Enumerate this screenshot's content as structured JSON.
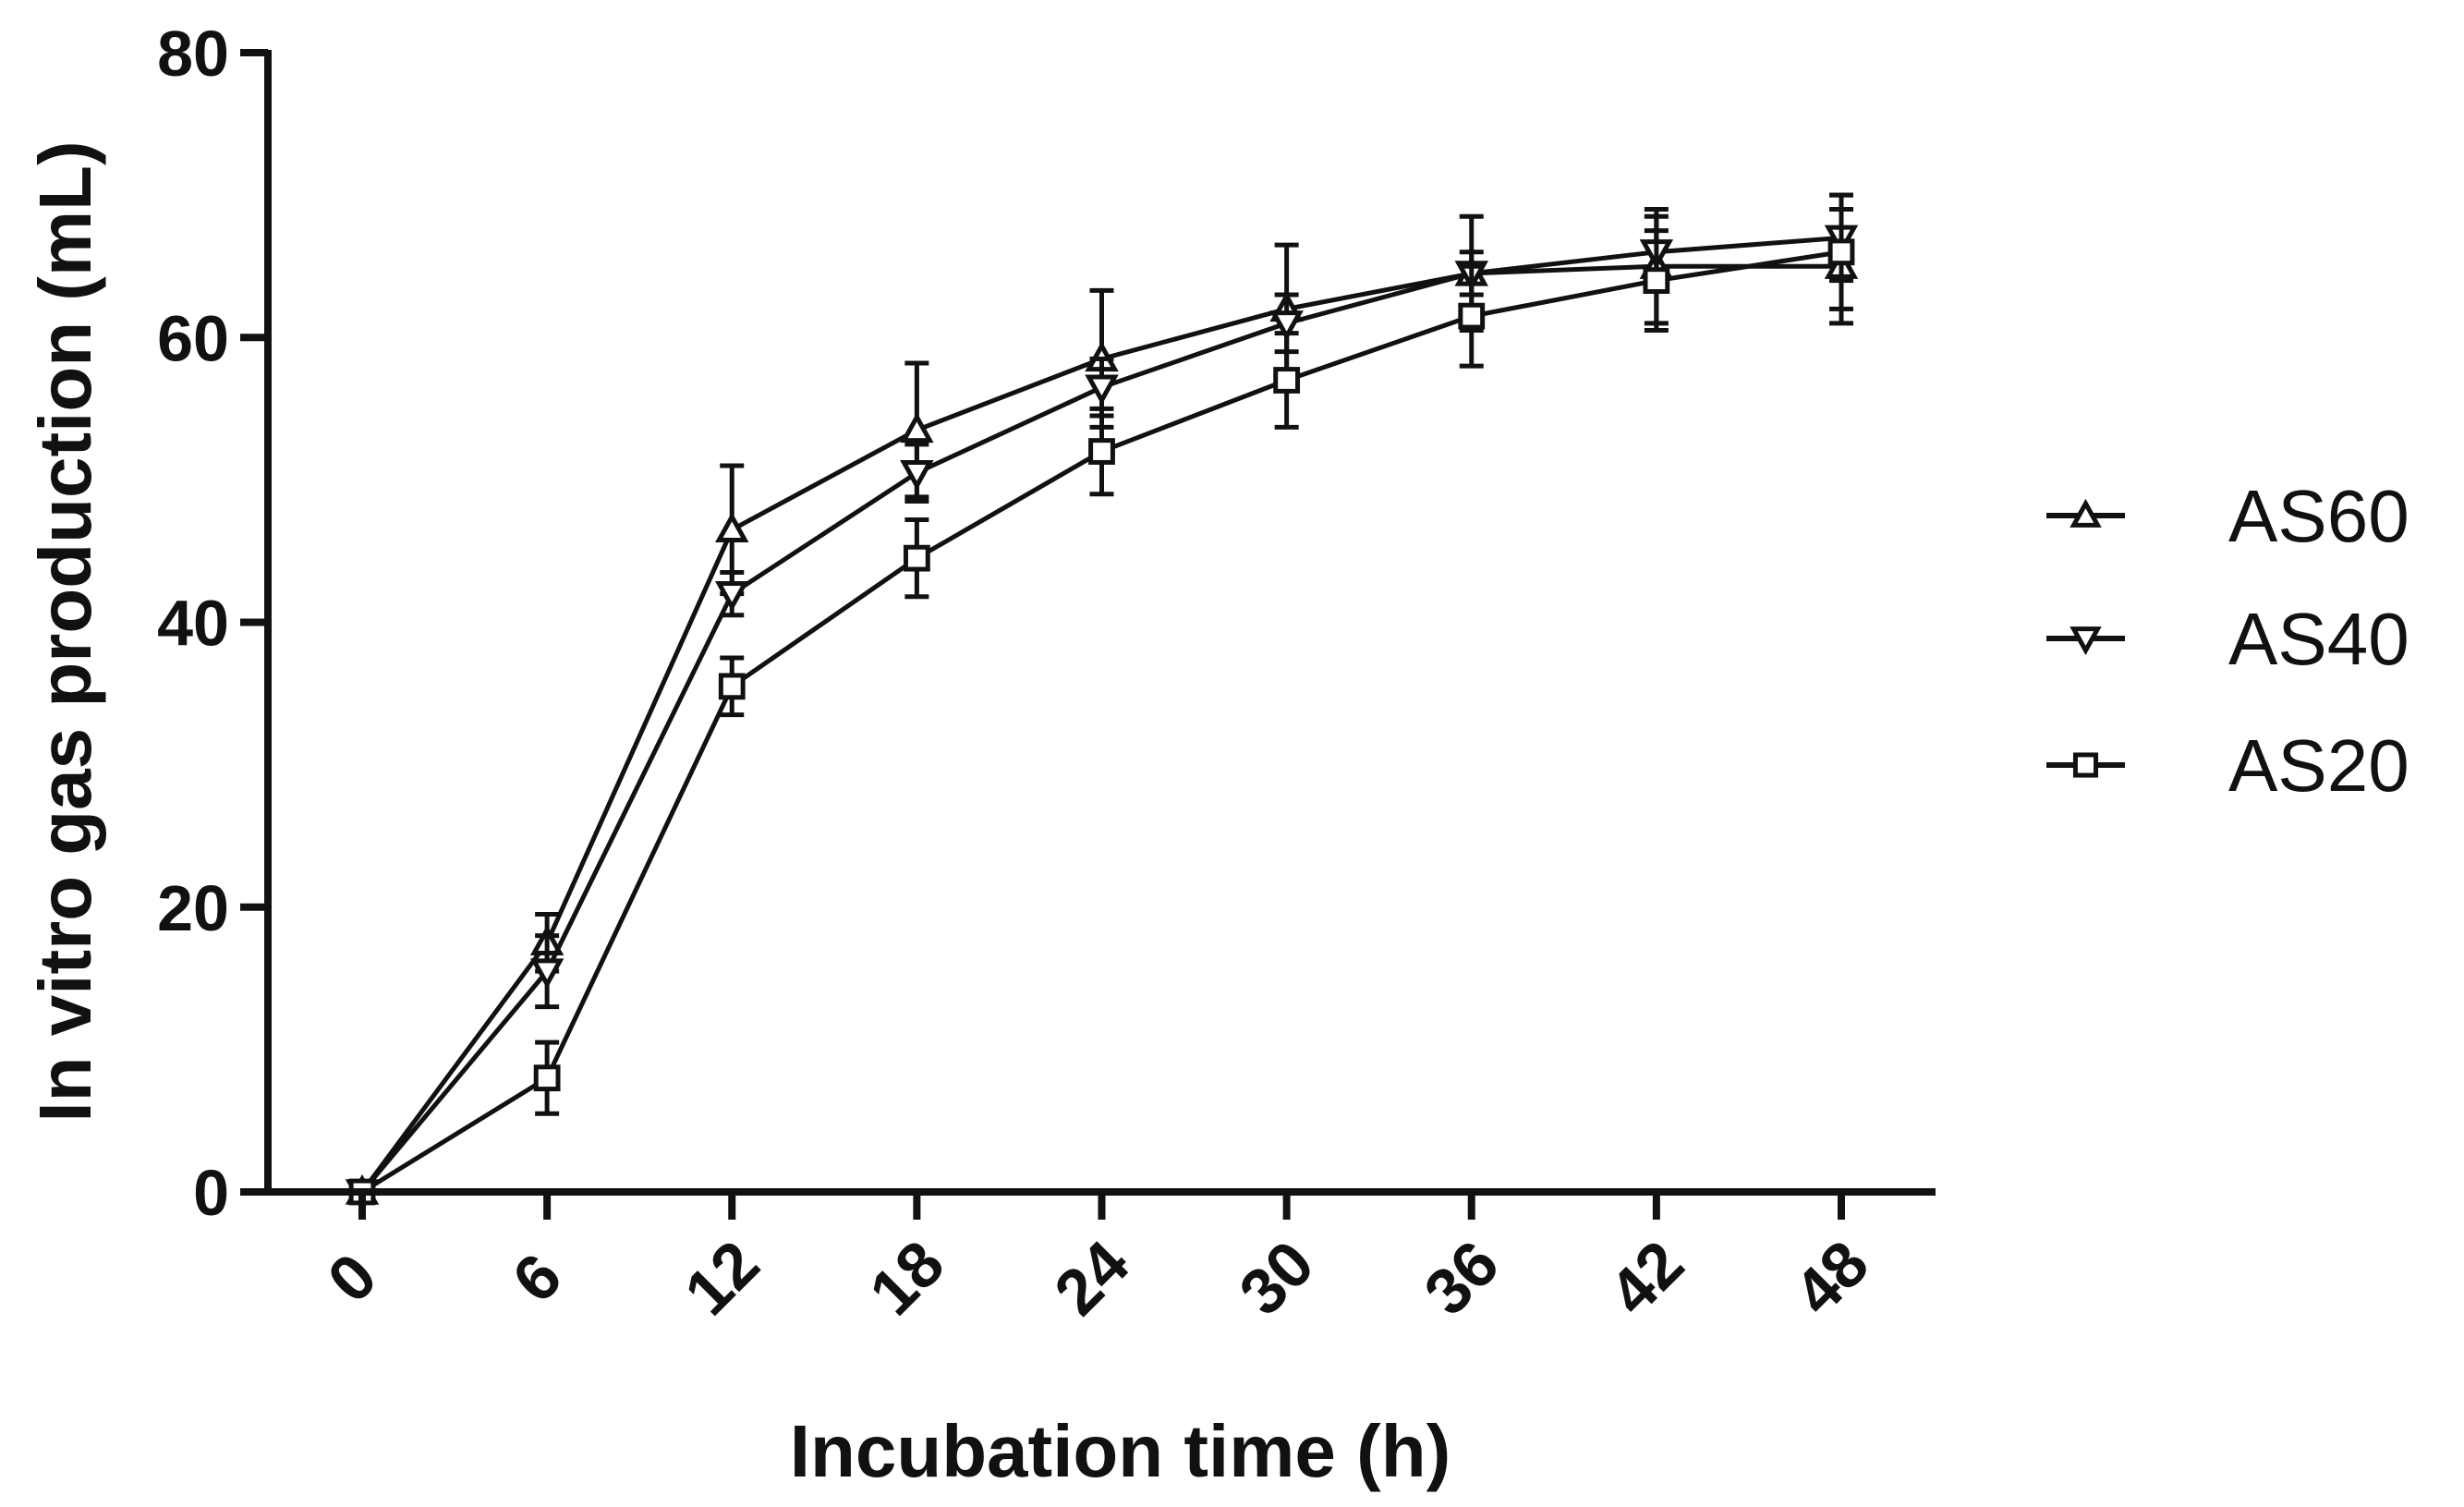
{
  "chart_data": {
    "type": "line",
    "title": "",
    "xlabel": "Incubation time (h)",
    "ylabel": "In vitro gas production (mL)",
    "x": [
      0,
      6,
      12,
      18,
      24,
      30,
      36,
      42,
      48
    ],
    "x_tick_labels": [
      "0",
      "6",
      "12",
      "18",
      "24",
      "30",
      "36",
      "42",
      "48"
    ],
    "y_ticks": [
      0,
      20,
      40,
      60,
      80
    ],
    "y_tick_labels": [
      "0",
      "20",
      "40",
      "60",
      "80"
    ],
    "xlim": [
      -3,
      51
    ],
    "ylim": [
      0,
      80
    ],
    "grid": false,
    "legend_position": "right",
    "series": [
      {
        "name": "AS60",
        "marker": "triangle-up",
        "values": [
          0,
          17.5,
          46.5,
          53.5,
          58.5,
          62,
          64.5,
          65,
          65
        ],
        "errors": [
          0,
          2.0,
          4.5,
          4.7,
          4.8,
          4.5,
          4.0,
          4.0,
          4.0
        ]
      },
      {
        "name": "AS40",
        "marker": "triangle-down",
        "values": [
          0,
          15.5,
          42,
          50.5,
          56.5,
          61,
          64.5,
          66,
          67
        ],
        "errors": [
          0,
          2.5,
          1.5,
          2.0,
          2.0,
          2.0,
          1.5,
          2.5,
          3.0
        ]
      },
      {
        "name": "AS20",
        "marker": "square",
        "values": [
          0,
          8,
          35.5,
          44.5,
          52,
          57,
          61.5,
          64,
          66
        ],
        "errors": [
          0,
          2.5,
          2.0,
          2.7,
          3.0,
          3.3,
          3.5,
          3.5,
          4.0
        ]
      }
    ]
  }
}
